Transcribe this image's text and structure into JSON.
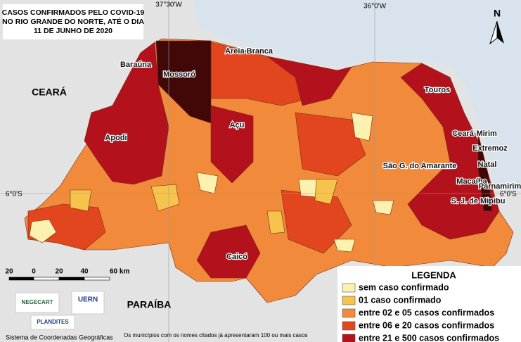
{
  "title": [
    "CASOS CONFIRMADOS PELO COVID-19",
    "NO RIO GRANDE DO NORTE, ATÉ O DIA",
    "11 DE JUNHO DE 2020"
  ],
  "coordinates": {
    "lon_left": "37°30'W",
    "lon_right": "36°0'W",
    "lat_left": "6°0'S",
    "lat_right": "6°0'S"
  },
  "north": "N",
  "neighbors": [
    "CEARÁ",
    "PARAÍBA"
  ],
  "cities": [
    "Baraúna",
    "Mossoró",
    "Areia Branca",
    "Touros",
    "Apodi",
    "Açu",
    "Ceará-Mirim",
    "Extremoz",
    "São G. do Amarante",
    "Natal",
    "Macaíba",
    "Parnamirim",
    "S. J. de Mipibu",
    "Caicó"
  ],
  "scale": [
    "20",
    "0",
    "20",
    "40",
    "60 km"
  ],
  "legend": {
    "title": "LEGENDA",
    "items": [
      {
        "label": "sem caso confirmado",
        "color": "#fdf1b0"
      },
      {
        "label": "01 caso confirmado",
        "color": "#f6c44d"
      },
      {
        "label": "entre 02 e 05 casos confirmados",
        "color": "#f18b3b"
      },
      {
        "label": "entre 06 e 20 casos confirmados",
        "color": "#e2461e"
      },
      {
        "label": "entre 21 e 500 casos confirmados",
        "color": "#b3121c"
      }
    ],
    "extra_color": "#420808"
  },
  "logos": [
    "NEGECART",
    "UERN",
    "PLANDITES"
  ],
  "footer": {
    "crs": "Sistema de Coordenadas Geográficas",
    "note": "Os municípios com os nomes citados já apresentaram 100 ou mais casos"
  }
}
